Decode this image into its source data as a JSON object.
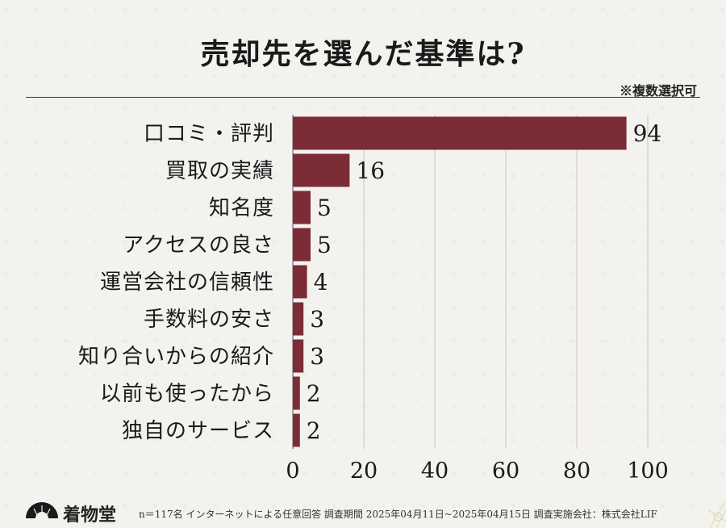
{
  "header": {
    "title": "売却先を選んだ基準は?",
    "note": "※複数選択可"
  },
  "chart_data": {
    "type": "bar",
    "orientation": "horizontal",
    "title": "売却先を選んだ基準は?",
    "categories": [
      "口コミ・評判",
      "買取の実績",
      "知名度",
      "アクセスの良さ",
      "運営会社の信頼性",
      "手数料の安さ",
      "知り合いからの紹介",
      "以前も使ったから",
      "独自のサービス"
    ],
    "values": [
      94,
      16,
      5,
      5,
      4,
      3,
      3,
      2,
      2
    ],
    "xlim": [
      0,
      100
    ],
    "xticks": [
      0,
      20,
      40,
      60,
      80,
      100
    ],
    "grid": true,
    "bar_color": "#7b2c35"
  },
  "footer": {
    "logo_text": "着物堂",
    "footnote": "n＝117名 インターネットによる任意回答 調査期間 2025年04月11日~2025年04月15日 調査実施会社：株式会社LIF"
  }
}
